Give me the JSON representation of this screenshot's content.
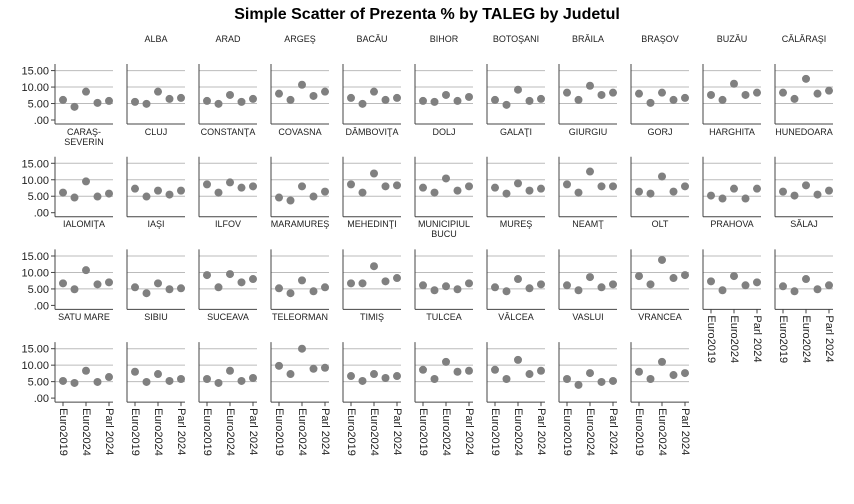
{
  "title": "Simple Scatter of Prezenta % by TALEG by Judetul",
  "chart_data": {
    "type": "scatter",
    "categories": [
      "Euro2019",
      null,
      "Euro2024",
      null,
      "Parl 2024"
    ],
    "ylim": [
      0,
      17
    ],
    "yticks": [
      {
        "value": 0,
        "label": ".00"
      },
      {
        "value": 5,
        "label": "5.00"
      },
      {
        "value": 10,
        "label": "10.00"
      },
      {
        "value": 15,
        "label": "15.00"
      }
    ],
    "grid": true,
    "color": "#808080",
    "panels": [
      {
        "title": null,
        "values": [
          6.1,
          4.0,
          8.6,
          5.2,
          5.8
        ]
      },
      {
        "title": "ALBA",
        "values": [
          5.5,
          4.9,
          8.6,
          6.4,
          6.7
        ]
      },
      {
        "title": "ARAD",
        "values": [
          5.8,
          4.9,
          7.6,
          5.5,
          6.4
        ]
      },
      {
        "title": "ARGEŞ",
        "values": [
          8.0,
          6.1,
          10.7,
          7.3,
          8.6
        ]
      },
      {
        "title": "BACĂU",
        "values": [
          6.7,
          4.9,
          8.6,
          6.1,
          6.7
        ]
      },
      {
        "title": "BIHOR",
        "values": [
          5.8,
          5.5,
          7.6,
          5.8,
          7.0
        ]
      },
      {
        "title": "BOTOŞANI",
        "values": [
          6.1,
          4.6,
          9.2,
          5.8,
          6.4
        ]
      },
      {
        "title": "BRĂILA",
        "values": [
          8.3,
          6.1,
          10.4,
          7.6,
          8.3
        ]
      },
      {
        "title": "BRAŞOV",
        "values": [
          8.0,
          5.2,
          8.3,
          6.1,
          6.7
        ]
      },
      {
        "title": "BUZĂU",
        "values": [
          7.6,
          6.1,
          11.0,
          7.6,
          8.3
        ]
      },
      {
        "title": "CĂLĂRAŞI",
        "values": [
          8.3,
          6.4,
          12.5,
          8.0,
          8.9
        ]
      },
      {
        "title": "CARAŞ-SEVERIN",
        "values": [
          6.1,
          4.6,
          9.5,
          4.9,
          5.8
        ]
      },
      {
        "title": "CLUJ",
        "values": [
          7.3,
          4.9,
          6.7,
          5.5,
          6.7
        ]
      },
      {
        "title": "CONSTANŢA",
        "values": [
          8.6,
          6.1,
          9.2,
          7.6,
          8.0
        ]
      },
      {
        "title": "COVASNA",
        "values": [
          4.6,
          3.7,
          8.0,
          4.9,
          6.4
        ]
      },
      {
        "title": "DÂMBOVIŢA",
        "values": [
          8.6,
          6.1,
          11.9,
          8.0,
          8.3
        ]
      },
      {
        "title": "DOLJ",
        "values": [
          7.6,
          6.1,
          10.4,
          6.7,
          8.0
        ]
      },
      {
        "title": "GALAŢI",
        "values": [
          7.6,
          5.8,
          8.9,
          6.7,
          7.3
        ]
      },
      {
        "title": "GIURGIU",
        "values": [
          8.6,
          6.1,
          12.5,
          8.0,
          8.0
        ]
      },
      {
        "title": "GORJ",
        "values": [
          6.4,
          5.8,
          11.0,
          6.4,
          8.0
        ]
      },
      {
        "title": "HARGHITA",
        "values": [
          5.2,
          4.3,
          7.3,
          4.3,
          7.3
        ]
      },
      {
        "title": "HUNEDOARA",
        "values": [
          6.4,
          5.2,
          8.3,
          5.5,
          6.7
        ]
      },
      {
        "title": "IALOMIŢA",
        "values": [
          6.7,
          4.9,
          10.7,
          6.4,
          7.0
        ]
      },
      {
        "title": "IAŞI",
        "values": [
          5.5,
          3.7,
          6.7,
          4.9,
          5.2
        ]
      },
      {
        "title": "ILFOV",
        "values": [
          9.2,
          5.5,
          9.5,
          7.0,
          8.0
        ]
      },
      {
        "title": "MARAMUREŞ",
        "values": [
          5.2,
          3.7,
          7.6,
          4.3,
          5.5
        ]
      },
      {
        "title": "MEHEDINŢI",
        "values": [
          6.7,
          6.7,
          11.9,
          7.3,
          8.3
        ]
      },
      {
        "title": "MUNICIPIUL BUCU",
        "values": [
          6.1,
          4.6,
          5.8,
          4.9,
          6.7
        ]
      },
      {
        "title": "MUREŞ",
        "values": [
          5.5,
          4.3,
          8.0,
          5.2,
          6.4
        ]
      },
      {
        "title": "NEAMŢ",
        "values": [
          6.1,
          4.6,
          8.6,
          5.5,
          6.4
        ]
      },
      {
        "title": "OLT",
        "values": [
          8.9,
          6.4,
          13.8,
          8.3,
          9.2
        ]
      },
      {
        "title": "PRAHOVA",
        "values": [
          7.3,
          4.6,
          8.9,
          6.1,
          7.0
        ]
      },
      {
        "title": "SĂLAJ",
        "values": [
          5.8,
          4.3,
          8.0,
          4.9,
          6.1
        ]
      },
      {
        "title": "SATU MARE",
        "values": [
          5.2,
          4.6,
          8.3,
          4.9,
          6.4
        ]
      },
      {
        "title": "SIBIU",
        "values": [
          8.0,
          4.9,
          7.3,
          5.2,
          5.8
        ]
      },
      {
        "title": "SUCEAVA",
        "values": [
          5.8,
          4.6,
          8.3,
          5.2,
          6.1
        ]
      },
      {
        "title": "TELEORMAN",
        "values": [
          9.8,
          7.3,
          15.0,
          8.9,
          9.2
        ]
      },
      {
        "title": "TIMIŞ",
        "values": [
          6.7,
          5.2,
          7.3,
          6.1,
          6.7
        ]
      },
      {
        "title": "TULCEA",
        "values": [
          8.6,
          5.8,
          11.0,
          8.0,
          8.3
        ]
      },
      {
        "title": "VÂLCEA",
        "values": [
          8.6,
          5.8,
          11.6,
          7.3,
          8.3
        ]
      },
      {
        "title": "VASLUI",
        "values": [
          5.8,
          4.0,
          7.6,
          4.9,
          5.2
        ]
      },
      {
        "title": "VRANCEA",
        "values": [
          8.0,
          5.8,
          11.0,
          7.0,
          7.6
        ]
      }
    ]
  }
}
